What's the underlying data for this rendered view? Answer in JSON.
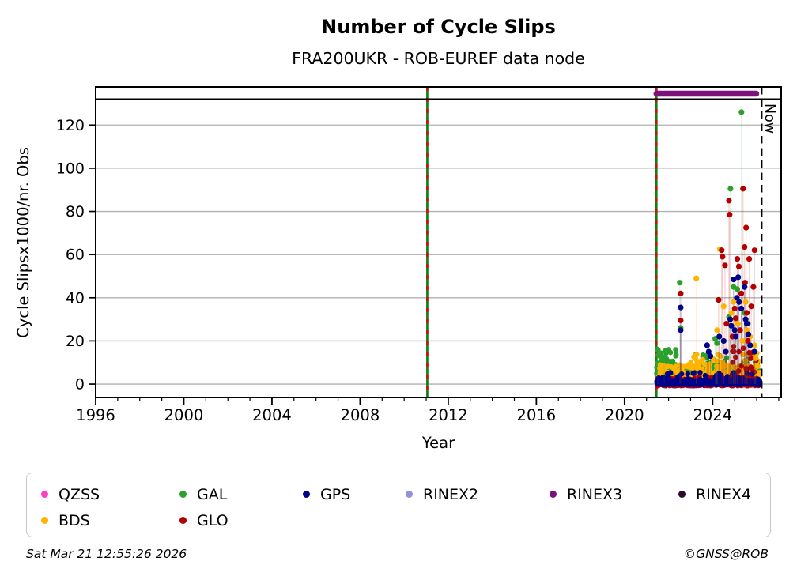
{
  "page": {
    "footer_left": "Sat Mar 21 12:55:26 2026",
    "footer_right": "©GNSS@ROB"
  },
  "colors": {
    "qzss": "#ff3fc3",
    "gal": "#2ca02c",
    "gps": "#00008b",
    "rinex2": "#9190d9",
    "rinex3": "#7c117c",
    "rinex4": "#2b0a2b",
    "bds": "#ffb400",
    "glo": "#b40000",
    "event_green": "#108010",
    "event_red": "#cc1111",
    "grid": "#b0b0b0",
    "axis": "#000000"
  },
  "legend": {
    "items": [
      {
        "label": "QZSS",
        "color": "#ff3fc3"
      },
      {
        "label": "GAL",
        "color": "#2ca02c"
      },
      {
        "label": "GPS",
        "color": "#00008b"
      },
      {
        "label": "RINEX2",
        "color": "#9190d9"
      },
      {
        "label": "RINEX3",
        "color": "#7c117c"
      },
      {
        "label": "RINEX4",
        "color": "#2b0a2b"
      },
      {
        "label": "BDS",
        "color": "#ffb400"
      },
      {
        "label": "GLO",
        "color": "#b40000"
      }
    ]
  },
  "chart_data": {
    "type": "scatter",
    "title": "Number of Cycle Slips",
    "subtitle": "FRA200UKR - ROB-EUREF data node",
    "xlabel": "Year",
    "ylabel": "Cycle Slipsx1000/nr. Obs",
    "xlim": [
      1996,
      2027.11
    ],
    "ylim": [
      -6.2,
      132
    ],
    "x_major_ticks": [
      1996,
      2000,
      2004,
      2008,
      2012,
      2016,
      2020,
      2024
    ],
    "x_minor_step": 1,
    "y_ticks": [
      0,
      20,
      40,
      60,
      80,
      100,
      120
    ],
    "grid": true,
    "legend_position": "below",
    "now_line": {
      "x": 2026.22,
      "label": "Now"
    },
    "event_lines": [
      {
        "x": 2011.05
      },
      {
        "x": 2021.45
      }
    ],
    "rinex3_bar": {
      "x0": 2021.45,
      "x1": 2025.98,
      "label": "RINEX3"
    },
    "noise_seed": 1337,
    "series": [
      {
        "name": "QZSS",
        "color": "#ff3fc3",
        "bands": [
          [
            2021.45,
            2026.1,
            50,
            -0.5,
            0.8,
            1.0
          ]
        ],
        "points": []
      },
      {
        "name": "GAL",
        "color": "#2ca02c",
        "bands": [
          [
            2021.45,
            2026.15,
            300,
            0.5,
            8.0,
            1.3
          ],
          [
            2021.45,
            2022.35,
            55,
            5.0,
            16.0,
            1.4
          ],
          [
            2023.2,
            2024.7,
            45,
            5.0,
            14.0,
            1.3
          ],
          [
            2025.3,
            2026.1,
            25,
            4.0,
            12.0,
            1.2
          ]
        ],
        "points": [
          [
            2022.51,
            47
          ],
          [
            2022.55,
            26
          ],
          [
            2024.81,
            90.5
          ],
          [
            2025.31,
            126
          ],
          [
            2025.12,
            44
          ],
          [
            2024.95,
            45
          ],
          [
            2024.74,
            31
          ],
          [
            2025.45,
            33
          ],
          [
            2025.6,
            28
          ],
          [
            2021.5,
            16
          ],
          [
            2021.8,
            12
          ],
          [
            2024.12,
            21
          ],
          [
            2024.2,
            19
          ]
        ]
      },
      {
        "name": "BDS",
        "color": "#ffb400",
        "bands": [
          [
            2021.55,
            2026.15,
            280,
            0.5,
            9.0,
            1.4
          ],
          [
            2023.0,
            2024.7,
            35,
            5.0,
            14.0,
            1.3
          ],
          [
            2025.3,
            2026.1,
            22,
            5.0,
            15.0,
            1.2
          ]
        ],
        "points": [
          [
            2023.26,
            49
          ],
          [
            2024.33,
            62.5
          ],
          [
            2024.5,
            36
          ],
          [
            2024.95,
            38
          ],
          [
            2025.05,
            30
          ],
          [
            2025.5,
            38
          ],
          [
            2025.15,
            28
          ],
          [
            2024.85,
            33
          ],
          [
            2025.55,
            25
          ],
          [
            2025.7,
            22
          ],
          [
            2025.35,
            20
          ],
          [
            2025.9,
            18
          ],
          [
            2024.2,
            25
          ],
          [
            2025.95,
            12
          ]
        ]
      },
      {
        "name": "GLO",
        "color": "#b40000",
        "bands": [
          [
            2021.45,
            2026.15,
            220,
            -0.8,
            3.5,
            1.6
          ],
          [
            2024.8,
            2026.0,
            30,
            3.0,
            18.0,
            1.5
          ]
        ],
        "points": [
          [
            2022.55,
            42
          ],
          [
            2022.55,
            29.5
          ],
          [
            2024.27,
            39
          ],
          [
            2024.41,
            62
          ],
          [
            2024.45,
            59
          ],
          [
            2024.56,
            55
          ],
          [
            2024.63,
            28
          ],
          [
            2024.74,
            85
          ],
          [
            2024.77,
            78.5
          ],
          [
            2024.9,
            22
          ],
          [
            2025.0,
            35
          ],
          [
            2025.05,
            30.5
          ],
          [
            2025.12,
            58
          ],
          [
            2025.19,
            54.5
          ],
          [
            2025.25,
            25
          ],
          [
            2025.3,
            42
          ],
          [
            2025.38,
            90.5
          ],
          [
            2025.45,
            63.5
          ],
          [
            2025.47,
            47
          ],
          [
            2025.52,
            72.5
          ],
          [
            2025.55,
            33
          ],
          [
            2025.6,
            20
          ],
          [
            2025.66,
            58
          ],
          [
            2025.75,
            36
          ],
          [
            2025.85,
            45
          ],
          [
            2025.9,
            62
          ]
        ]
      },
      {
        "name": "GPS",
        "color": "#00008b",
        "bands": [
          [
            2021.45,
            2026.15,
            330,
            -0.3,
            1.8,
            1.0
          ],
          [
            2021.45,
            2026.15,
            70,
            1.0,
            5.5,
            1.8
          ]
        ],
        "points": [
          [
            2022.55,
            35.5
          ],
          [
            2022.55,
            25
          ],
          [
            2023.75,
            18
          ],
          [
            2023.82,
            15
          ],
          [
            2023.9,
            13
          ],
          [
            2024.3,
            22
          ],
          [
            2024.5,
            20
          ],
          [
            2024.6,
            15
          ],
          [
            2024.8,
            30
          ],
          [
            2024.85,
            27
          ],
          [
            2024.95,
            48.5
          ],
          [
            2025.0,
            25
          ],
          [
            2025.05,
            22
          ],
          [
            2025.1,
            40
          ],
          [
            2025.16,
            49.5
          ],
          [
            2025.2,
            38
          ],
          [
            2025.3,
            35
          ],
          [
            2025.45,
            45
          ],
          [
            2025.5,
            30
          ],
          [
            2025.55,
            28
          ],
          [
            2025.62,
            23
          ],
          [
            2025.7,
            18
          ],
          [
            2025.9,
            15
          ]
        ]
      }
    ]
  }
}
